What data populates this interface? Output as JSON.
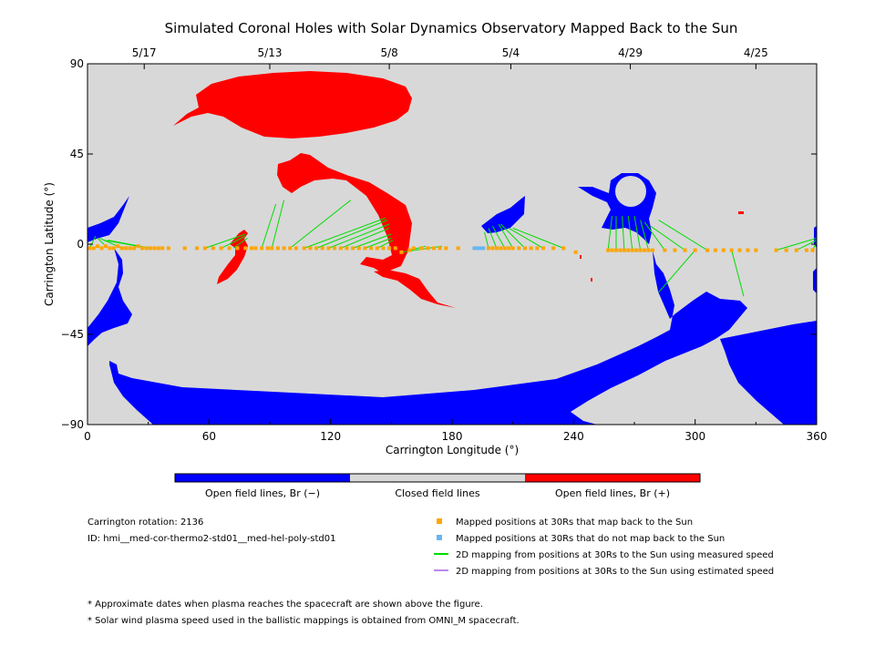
{
  "chart_data": {
    "type": "scatter",
    "title": "Simulated Coronal Holes with Solar Dynamics Observatory Mapped Back to the Sun",
    "xlabel": "Carrington Longitude (°)",
    "ylabel": "Carrington Latitude (°)",
    "xlim": [
      0,
      360
    ],
    "ylim": [
      -90,
      90
    ],
    "x_ticks": [
      "0",
      "60",
      "120",
      "180",
      "240",
      "300",
      "360"
    ],
    "y_ticks": [
      "90",
      "45",
      "0",
      "−45",
      "−90"
    ],
    "top_axis_dates": [
      {
        "label": "5/17",
        "lon": 28
      },
      {
        "label": "5/13",
        "lon": 90
      },
      {
        "label": "5/8",
        "lon": 149
      },
      {
        "label": "5/4",
        "lon": 209
      },
      {
        "label": "4/29",
        "lon": 268
      },
      {
        "label": "4/25",
        "lon": 330
      }
    ],
    "colors": {
      "background": "#d8d8d8",
      "open_negative": "#0000ff",
      "open_positive": "#ff0000",
      "closed": "#d8d8d8",
      "mapped_points": "#ffa500",
      "unmapped_points": "#69b6f0",
      "measured_lines": "#00dd00",
      "estimated_lines": "#bb88ee"
    },
    "colorbar": {
      "open_negative_label": "Open field lines, Br (−)",
      "closed_label": "Closed field lines",
      "open_positive_label": "Open field lines, Br (+)"
    },
    "mapped_points": [
      [
        1,
        -2
      ],
      [
        3,
        -2
      ],
      [
        5,
        -1
      ],
      [
        7,
        -2
      ],
      [
        9,
        -1
      ],
      [
        11,
        -2
      ],
      [
        13,
        -2
      ],
      [
        15,
        -1
      ],
      [
        17,
        -2
      ],
      [
        19,
        -2
      ],
      [
        21,
        -2
      ],
      [
        23,
        -2
      ],
      [
        25,
        -1
      ],
      [
        27,
        -2
      ],
      [
        29,
        -2
      ],
      [
        31,
        -2
      ],
      [
        33,
        -2
      ],
      [
        35,
        -2
      ],
      [
        37,
        -2
      ],
      [
        40,
        -2
      ],
      [
        48,
        -2
      ],
      [
        54,
        -2
      ],
      [
        58,
        -2
      ],
      [
        62,
        -2
      ],
      [
        66,
        -2
      ],
      [
        70,
        -2
      ],
      [
        74,
        -2
      ],
      [
        78,
        -2
      ],
      [
        81,
        -2
      ],
      [
        83,
        -2
      ],
      [
        86,
        -2
      ],
      [
        89,
        -2
      ],
      [
        91,
        -2
      ],
      [
        94,
        -2
      ],
      [
        97,
        -2
      ],
      [
        100,
        -2
      ],
      [
        103,
        -2
      ],
      [
        107,
        -2
      ],
      [
        110,
        -2
      ],
      [
        113,
        -2
      ],
      [
        116,
        -2
      ],
      [
        119,
        -2
      ],
      [
        122,
        -2
      ],
      [
        125,
        -2
      ],
      [
        128,
        -2
      ],
      [
        131,
        -2
      ],
      [
        134,
        -2
      ],
      [
        137,
        -2
      ],
      [
        140,
        -2
      ],
      [
        143,
        -2
      ],
      [
        146,
        -2
      ],
      [
        149,
        -2
      ],
      [
        152,
        -2
      ],
      [
        155,
        -4
      ],
      [
        159,
        -3
      ],
      [
        161,
        -2
      ],
      [
        165,
        -2
      ],
      [
        168,
        -2
      ],
      [
        171,
        -2
      ],
      [
        174,
        -2
      ],
      [
        177,
        -2
      ],
      [
        183,
        -2
      ],
      [
        198,
        -2
      ],
      [
        200,
        -2
      ],
      [
        202,
        -2
      ],
      [
        204,
        -2
      ],
      [
        206,
        -2
      ],
      [
        208,
        -2
      ],
      [
        210,
        -2
      ],
      [
        213,
        -2
      ],
      [
        216,
        -2
      ],
      [
        219,
        -2
      ],
      [
        222,
        -2
      ],
      [
        225,
        -2
      ],
      [
        230,
        -2
      ],
      [
        235,
        -2
      ],
      [
        241,
        -4
      ],
      [
        257,
        -3
      ],
      [
        259,
        -3
      ],
      [
        261,
        -3
      ],
      [
        263,
        -3
      ],
      [
        265,
        -3
      ],
      [
        267,
        -3
      ],
      [
        269,
        -3
      ],
      [
        271,
        -3
      ],
      [
        273,
        -3
      ],
      [
        275,
        -3
      ],
      [
        277,
        -3
      ],
      [
        279,
        -3
      ],
      [
        285,
        -3
      ],
      [
        290,
        -3
      ],
      [
        295,
        -3
      ],
      [
        300,
        -3
      ],
      [
        306,
        -3
      ],
      [
        310,
        -3
      ],
      [
        314,
        -3
      ],
      [
        318,
        -3
      ],
      [
        322,
        -3
      ],
      [
        326,
        -3
      ],
      [
        330,
        -3
      ],
      [
        340,
        -3
      ],
      [
        345,
        -3
      ],
      [
        350,
        -3
      ],
      [
        355,
        -3
      ],
      [
        358,
        -3
      ]
    ],
    "unmapped_points": [
      [
        191,
        -2
      ],
      [
        193,
        -2
      ],
      [
        195,
        -2
      ]
    ],
    "measured_lines": [
      [
        [
          1,
          -2
        ],
        [
          4,
          4
        ]
      ],
      [
        [
          9,
          -1
        ],
        [
          5,
          3
        ]
      ],
      [
        [
          17,
          -2
        ],
        [
          6,
          3
        ]
      ],
      [
        [
          25,
          -1
        ],
        [
          8,
          2
        ]
      ],
      [
        [
          31,
          -2
        ],
        [
          10,
          2
        ]
      ],
      [
        [
          58,
          -2
        ],
        [
          78,
          5
        ]
      ],
      [
        [
          66,
          -2
        ],
        [
          78,
          4
        ]
      ],
      [
        [
          72,
          -2
        ],
        [
          79,
          3
        ]
      ],
      [
        [
          86,
          -2
        ],
        [
          93,
          20
        ]
      ],
      [
        [
          91,
          -2
        ],
        [
          97,
          22
        ]
      ],
      [
        [
          100,
          -2
        ],
        [
          130,
          22
        ]
      ],
      [
        [
          107,
          -2
        ],
        [
          147,
          13
        ]
      ],
      [
        [
          113,
          -2
        ],
        [
          148,
          12
        ]
      ],
      [
        [
          119,
          -2
        ],
        [
          149,
          10
        ]
      ],
      [
        [
          125,
          -2
        ],
        [
          149,
          8
        ]
      ],
      [
        [
          131,
          -2
        ],
        [
          150,
          5
        ]
      ],
      [
        [
          137,
          -2
        ],
        [
          150,
          3
        ]
      ],
      [
        [
          143,
          -2
        ],
        [
          151,
          2
        ]
      ],
      [
        [
          155,
          -4
        ],
        [
          175,
          -1
        ]
      ],
      [
        [
          159,
          -3
        ],
        [
          167,
          -1
        ]
      ],
      [
        [
          198,
          -2
        ],
        [
          196,
          6
        ]
      ],
      [
        [
          202,
          -2
        ],
        [
          198,
          8
        ]
      ],
      [
        [
          206,
          -2
        ],
        [
          200,
          9
        ]
      ],
      [
        [
          210,
          -2
        ],
        [
          203,
          10
        ]
      ],
      [
        [
          216,
          -2
        ],
        [
          204,
          10
        ]
      ],
      [
        [
          225,
          -2
        ],
        [
          208,
          8
        ]
      ],
      [
        [
          235,
          -2
        ],
        [
          210,
          8
        ]
      ],
      [
        [
          257,
          -3
        ],
        [
          259,
          14
        ]
      ],
      [
        [
          261,
          -3
        ],
        [
          261,
          14
        ]
      ],
      [
        [
          265,
          -3
        ],
        [
          264,
          14
        ]
      ],
      [
        [
          269,
          -3
        ],
        [
          267,
          14
        ]
      ],
      [
        [
          273,
          -3
        ],
        [
          270,
          14
        ]
      ],
      [
        [
          277,
          -3
        ],
        [
          273,
          12
        ]
      ],
      [
        [
          285,
          -3
        ],
        [
          275,
          11
        ]
      ],
      [
        [
          295,
          -3
        ],
        [
          278,
          9
        ]
      ],
      [
        [
          306,
          -3
        ],
        [
          282,
          12
        ]
      ],
      [
        [
          300,
          -3
        ],
        [
          282,
          -24
        ]
      ],
      [
        [
          318,
          -3
        ],
        [
          324,
          -26
        ]
      ],
      [
        [
          340,
          -3
        ],
        [
          360,
          3
        ]
      ],
      [
        [
          350,
          -3
        ],
        [
          360,
          2
        ]
      ],
      [
        [
          358,
          -3
        ],
        [
          360,
          1
        ]
      ]
    ]
  },
  "info": {
    "rotation": "Carrington rotation: 2136",
    "model_id": "ID: hmi__med-cor-thermo2-std01__med-hel-poly-std01"
  },
  "legend": {
    "mapped": "Mapped positions at 30Rs that map back to the Sun",
    "unmapped": "Mapped positions at 30Rs that do not map back to the Sun",
    "measured": "2D mapping from positions at 30Rs to the Sun using measured speed",
    "estimated": "2D mapping from positions at 30Rs to the Sun using estimated speed"
  },
  "footnotes": {
    "note1": "* Approximate dates when plasma reaches the spacecraft are shown above the figure.",
    "note2": "* Solar wind plasma speed used in the ballistic mappings is obtained from OMNI_M spacecraft."
  }
}
